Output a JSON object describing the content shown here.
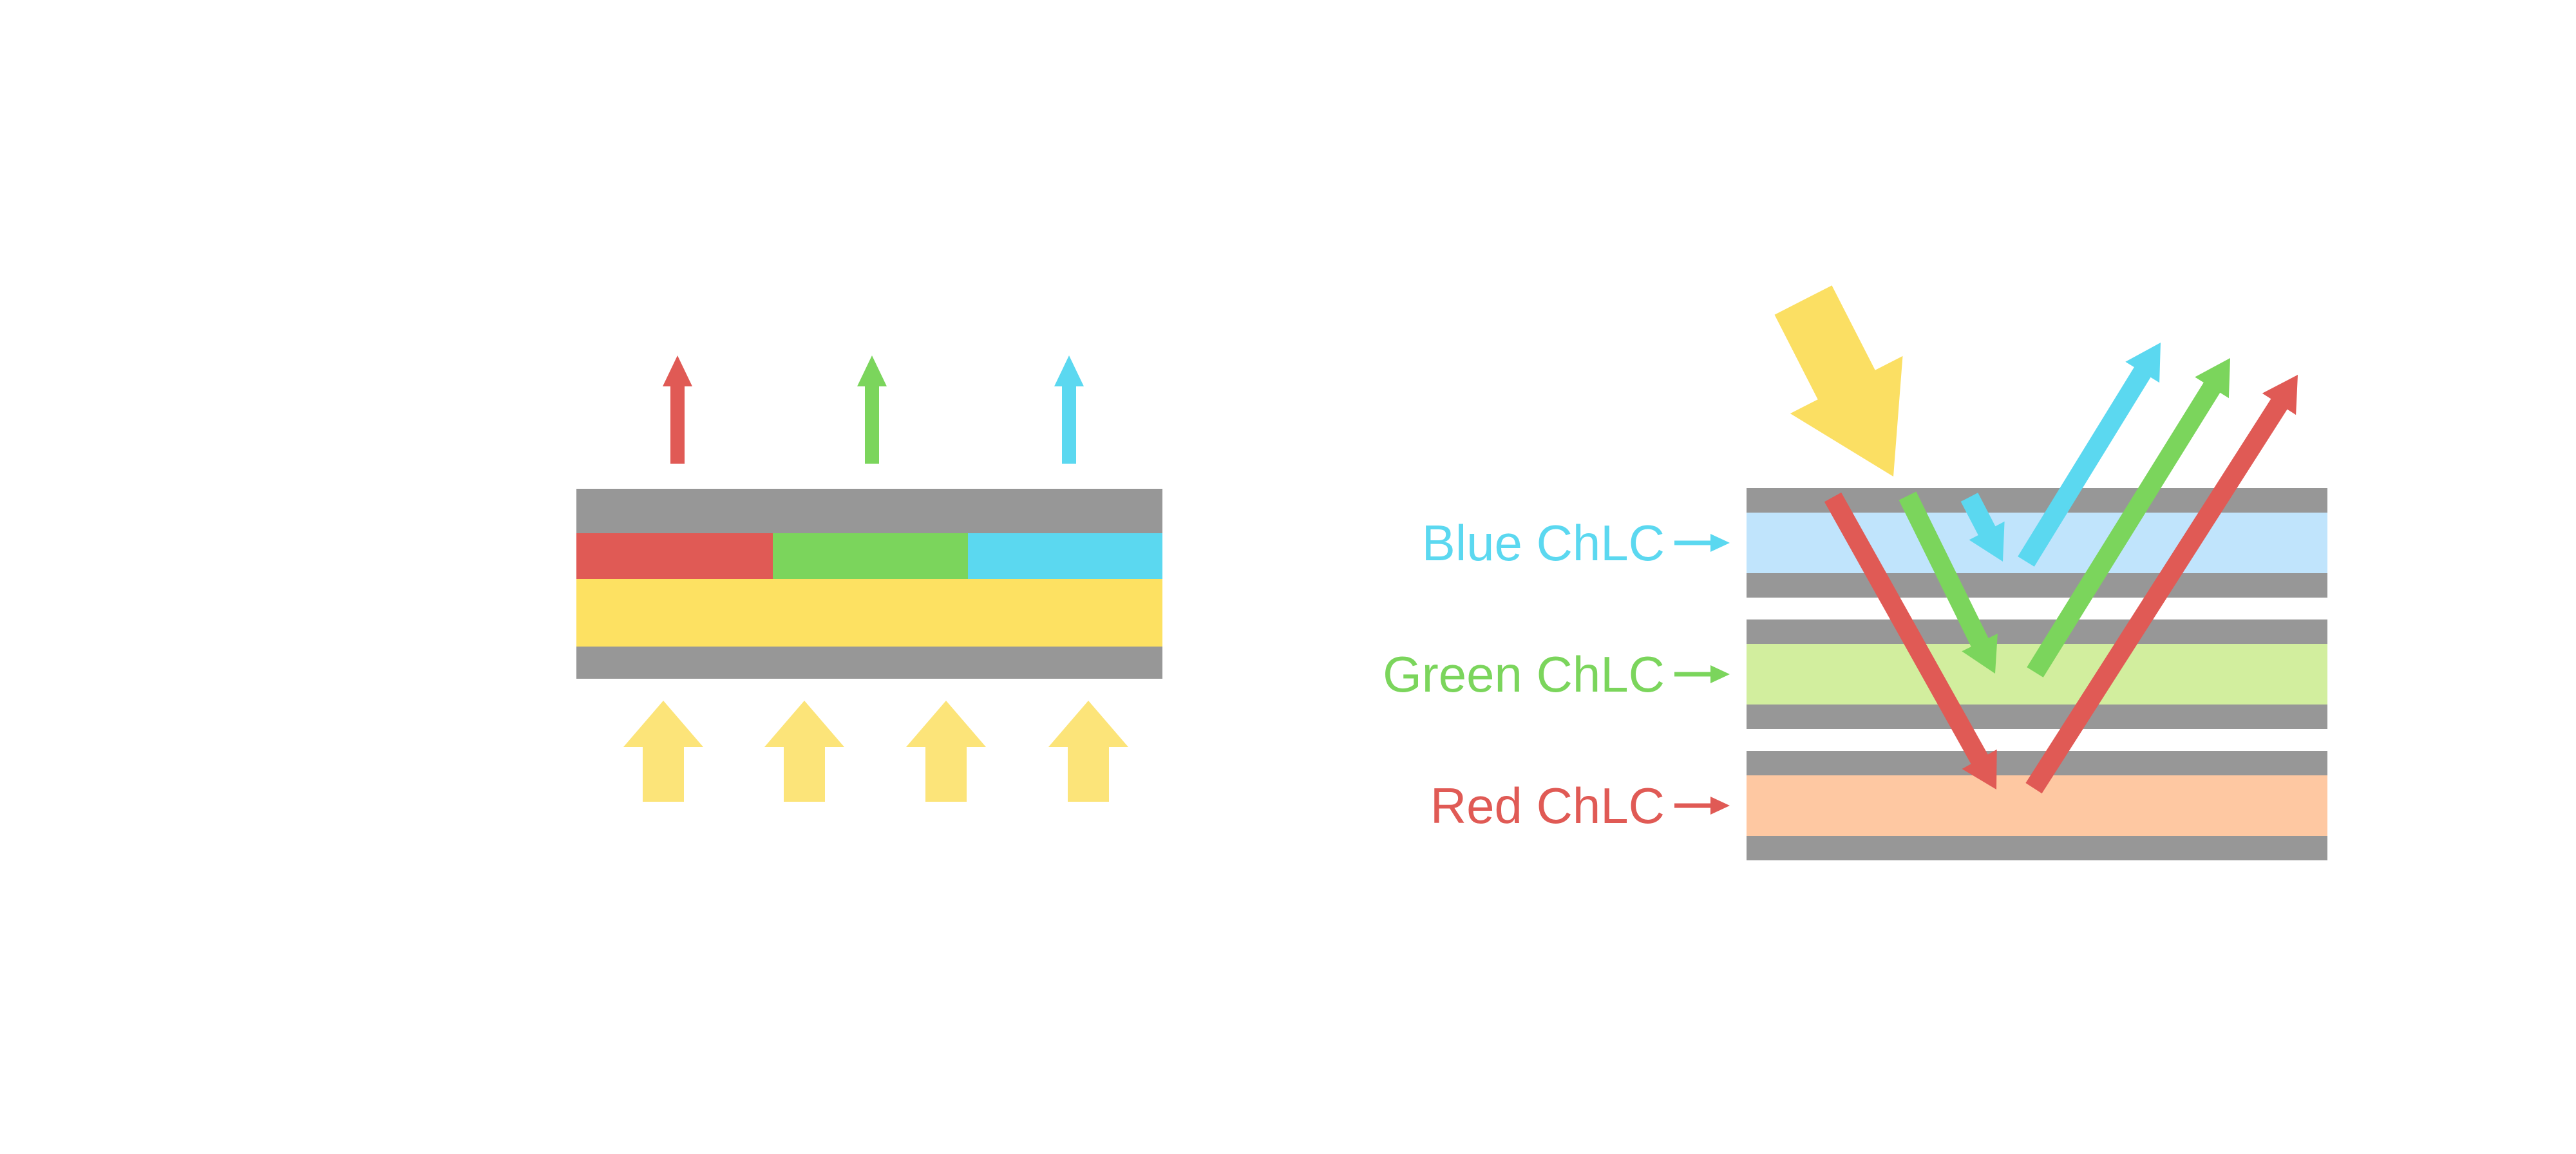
{
  "background": "#FFFFFF",
  "colors": {
    "gray": "#979797",
    "red": "#E05A55",
    "green": "#7BD55C",
    "cyan": "#5BD8F0",
    "yellow_band": "#FDE162",
    "yellow_arrow": "#FCE479",
    "yellow_incident": "#FBDF63",
    "light_blue": "#C0E4FC",
    "light_green": "#D2EE9E",
    "light_orange": "#FEC8A2"
  },
  "left_diagram": {
    "emitted_arrows": [
      {
        "icon": "emitted-red-light-arrow",
        "color": "red"
      },
      {
        "icon": "emitted-green-light-arrow",
        "color": "green"
      },
      {
        "icon": "emitted-cyan-light-arrow",
        "color": "cyan"
      }
    ],
    "layers": [
      {
        "part": "top-substrate",
        "color": "gray"
      },
      {
        "part": "red-subpixel",
        "color": "red"
      },
      {
        "part": "green-subpixel",
        "color": "green"
      },
      {
        "part": "cyan-subpixel",
        "color": "cyan"
      },
      {
        "part": "backlight-layer",
        "color": "yellow_band"
      },
      {
        "part": "bottom-substrate",
        "color": "gray"
      }
    ],
    "backlight_arrows": {
      "icon": "backlight-up-arrow",
      "count": 4,
      "color": "yellow_arrow"
    }
  },
  "right_diagram": {
    "incident_arrow": {
      "icon": "incident-light-arrow",
      "color": "yellow_incident"
    },
    "labels": [
      {
        "text": "Blue ChLC",
        "color": "cyan"
      },
      {
        "text": "Green ChLC",
        "color": "green"
      },
      {
        "text": "Red ChLC",
        "color": "red"
      }
    ],
    "layers": [
      {
        "part": "blue-stack-top-substrate",
        "color": "gray"
      },
      {
        "part": "blue-chlc-band",
        "color": "light_blue"
      },
      {
        "part": "blue-stack-bottom-substrate",
        "color": "gray"
      },
      {
        "part": "green-stack-top-substrate",
        "color": "gray"
      },
      {
        "part": "green-chlc-band",
        "color": "light_green"
      },
      {
        "part": "green-stack-bottom-substrate",
        "color": "gray"
      },
      {
        "part": "red-stack-top-substrate",
        "color": "gray"
      },
      {
        "part": "red-chlc-band",
        "color": "light_orange"
      },
      {
        "part": "red-stack-bottom-substrate",
        "color": "gray"
      }
    ],
    "light_paths": [
      {
        "icon": "red-light-descending-arrow",
        "color": "red"
      },
      {
        "icon": "green-light-descending-arrow",
        "color": "green"
      },
      {
        "icon": "cyan-light-descending-arrow",
        "color": "cyan"
      },
      {
        "icon": "cyan-light-reflected-arrow",
        "color": "cyan"
      },
      {
        "icon": "green-light-reflected-arrow",
        "color": "green"
      },
      {
        "icon": "red-light-reflected-arrow",
        "color": "red"
      }
    ]
  }
}
